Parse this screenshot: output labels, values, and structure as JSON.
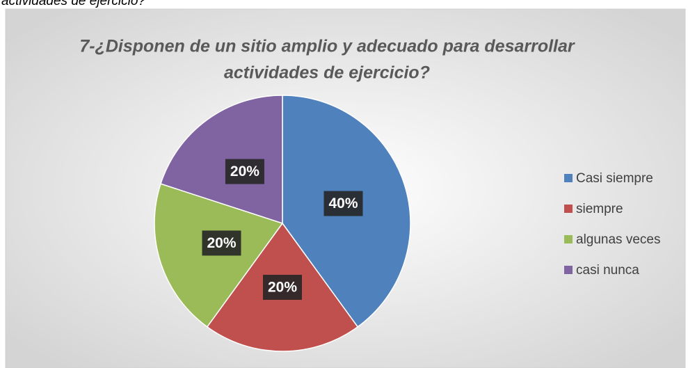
{
  "caption_fragment": "actividades de ejercicio?",
  "chart_data": {
    "type": "pie",
    "title": [
      "7-¿Disponen de un sitio amplio y adecuado para desarrollar",
      "actividades de ejercicio?"
    ],
    "categories": [
      "Casi siempre",
      "siempre",
      "algunas veces",
      "casi nunca"
    ],
    "values": [
      40,
      20,
      20,
      20
    ],
    "value_labels": [
      "40%",
      "20%",
      "20%",
      "20%"
    ],
    "colors": [
      "#4f81bd",
      "#c0504d",
      "#9bbb59",
      "#8064a2"
    ],
    "legend": "right"
  }
}
